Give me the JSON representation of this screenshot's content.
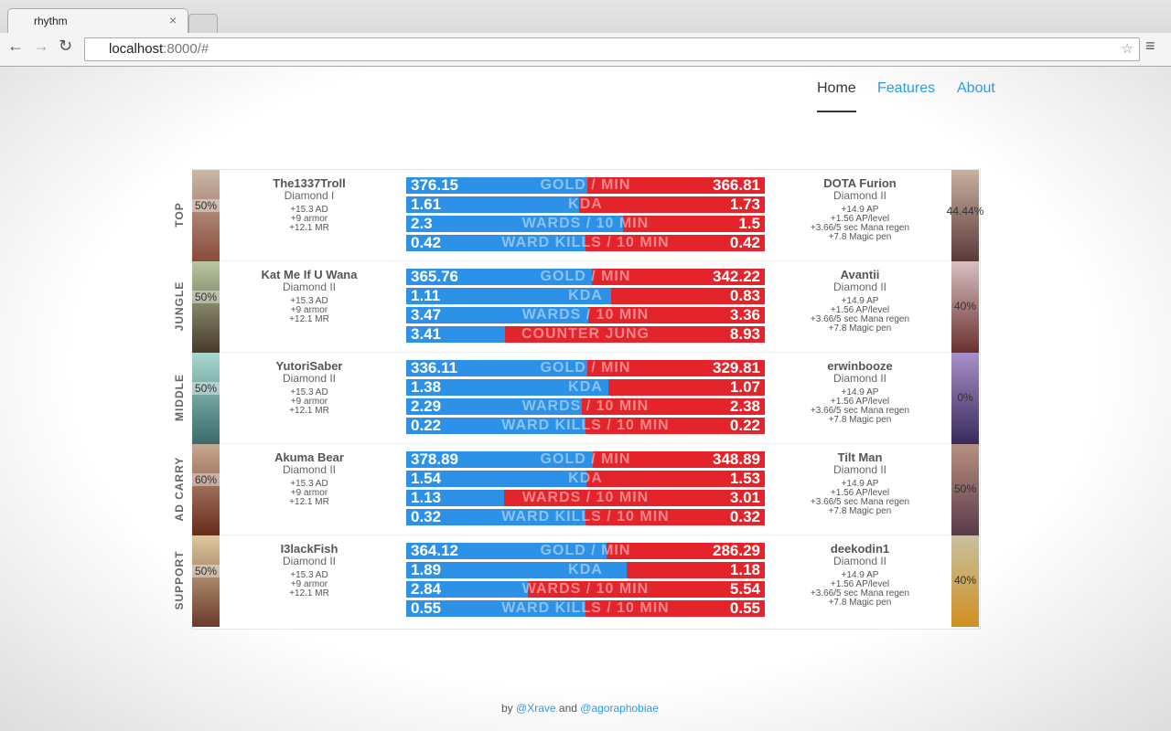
{
  "browser": {
    "tab_title": "rhythm",
    "url_host": "localhost",
    "url_rest": ":8000/#"
  },
  "nav": [
    "Home",
    "Features",
    "About"
  ],
  "rows": [
    {
      "role": "TOP",
      "left": {
        "win": "50%",
        "name": "The1337Troll",
        "rank": "Diamond I",
        "stats": [
          "+15.3 AD",
          "+9 armor",
          "+12.1 MR"
        ]
      },
      "right": {
        "win": "44.44%",
        "name": "DOTA Furion",
        "rank": "Diamond II",
        "stats": [
          "+14.9 AP",
          "+1.56 AP/level",
          "+3.66/5 sec Mana regen",
          "+7.8 Magic pen"
        ]
      },
      "metrics": [
        {
          "label": "GOLD / MIN",
          "left": 376.15,
          "right": 366.81
        },
        {
          "label": "KDA",
          "left": 1.61,
          "right": 1.73
        },
        {
          "label": "WARDS / 10 MIN",
          "left": 2.3,
          "right": 1.5
        },
        {
          "label": "WARD KILLS / 10 MIN",
          "left": 0.42,
          "right": 0.42
        }
      ]
    },
    {
      "role": "JUNGLE",
      "left": {
        "win": "50%",
        "name": "Kat Me If U Wana",
        "rank": "Diamond II",
        "stats": [
          "+15.3 AD",
          "+9 armor",
          "+12.1 MR"
        ]
      },
      "right": {
        "win": "40%",
        "name": "Avantii",
        "rank": "Diamond II",
        "stats": [
          "+14.9 AP",
          "+1.56 AP/level",
          "+3.66/5 sec Mana regen",
          "+7.8 Magic pen"
        ]
      },
      "metrics": [
        {
          "label": "GOLD / MIN",
          "left": 365.76,
          "right": 342.22
        },
        {
          "label": "KDA",
          "left": 1.11,
          "right": 0.83
        },
        {
          "label": "WARDS / 10 MIN",
          "left": 3.47,
          "right": 3.36
        },
        {
          "label": "COUNTER JUNG",
          "left": 3.41,
          "right": 8.93
        }
      ]
    },
    {
      "role": "MIDDLE",
      "left": {
        "win": "50%",
        "name": "YutoriSaber",
        "rank": "Diamond II",
        "stats": [
          "+15.3 AD",
          "+9 armor",
          "+12.1 MR"
        ]
      },
      "right": {
        "win": "0%",
        "name": "erwinbooze",
        "rank": "Diamond II",
        "stats": [
          "+14.9 AP",
          "+1.56 AP/level",
          "+3.66/5 sec Mana regen",
          "+7.8 Magic pen"
        ]
      },
      "metrics": [
        {
          "label": "GOLD / MIN",
          "left": 336.11,
          "right": 329.81
        },
        {
          "label": "KDA",
          "left": 1.38,
          "right": 1.07
        },
        {
          "label": "WARDS / 10 MIN",
          "left": 2.29,
          "right": 2.38
        },
        {
          "label": "WARD KILLS / 10 MIN",
          "left": 0.22,
          "right": 0.22
        }
      ]
    },
    {
      "role": "AD CARRY",
      "left": {
        "win": "60%",
        "name": "Akuma Bear",
        "rank": "Diamond II",
        "stats": [
          "+15.3 AD",
          "+9 armor",
          "+12.1 MR"
        ]
      },
      "right": {
        "win": "50%",
        "name": "Tilt Man",
        "rank": "Diamond II",
        "stats": [
          "+14.9 AP",
          "+1.56 AP/level",
          "+3.66/5 sec Mana regen",
          "+7.8 Magic pen"
        ]
      },
      "metrics": [
        {
          "label": "GOLD / MIN",
          "left": 378.89,
          "right": 348.89
        },
        {
          "label": "KDA",
          "left": 1.54,
          "right": 1.53
        },
        {
          "label": "WARDS / 10 MIN",
          "left": 1.13,
          "right": 3.01
        },
        {
          "label": "WARD KILLS / 10 MIN",
          "left": 0.32,
          "right": 0.32
        }
      ]
    },
    {
      "role": "SUPPORT",
      "left": {
        "win": "50%",
        "name": "I3lackFish",
        "rank": "Diamond II",
        "stats": [
          "+15.3 AD",
          "+9 armor",
          "+12.1 MR"
        ]
      },
      "right": {
        "win": "40%",
        "name": "deekodin1",
        "rank": "Diamond II",
        "stats": [
          "+14.9 AP",
          "+1.56 AP/level",
          "+3.66/5 sec Mana regen",
          "+7.8 Magic pen"
        ]
      },
      "metrics": [
        {
          "label": "GOLD / MIN",
          "left": 364.12,
          "right": 286.29
        },
        {
          "label": "KDA",
          "left": 1.89,
          "right": 1.18
        },
        {
          "label": "WARDS / 10 MIN",
          "left": 2.84,
          "right": 5.54
        },
        {
          "label": "WARD KILLS / 10 MIN",
          "left": 0.55,
          "right": 0.55
        }
      ]
    }
  ],
  "footer": {
    "by": "by",
    "author1": "@Xrave",
    "and": "and",
    "author2": "@agoraphobiae"
  }
}
